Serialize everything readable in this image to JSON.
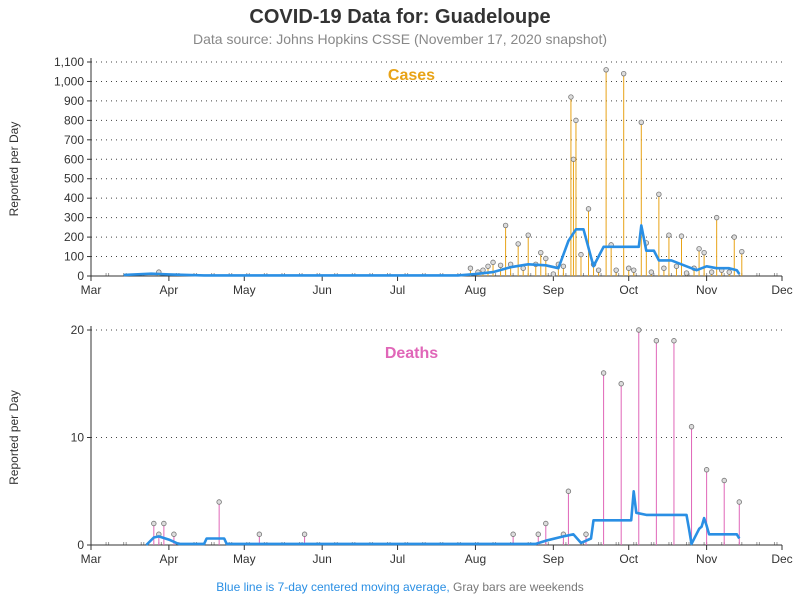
{
  "title": "COVID-19 Data for: Guadeloupe",
  "subtitle": "Data source: Johns Hopkins CSSE (November 17, 2020 snapshot)",
  "footer": {
    "blue_text": "Blue line is 7-day centered moving average,",
    "gray_text": " Gray bars are weekends"
  },
  "colors": {
    "cases": "#e8a317",
    "deaths": "#e066b8",
    "average_line": "#2a8fe4",
    "weekend_bars": "#999999"
  },
  "chart_data": [
    {
      "type": "line",
      "title": "Cases",
      "ylabel": "Reported per Day",
      "ylim": [
        0,
        1100
      ],
      "yticks": [
        0,
        100,
        200,
        300,
        400,
        500,
        600,
        700,
        800,
        900,
        1000,
        1100
      ],
      "ytick_labels": [
        "0",
        "100",
        "200",
        "300",
        "400",
        "500",
        "600",
        "700",
        "800",
        "900",
        "1,000",
        "1,100"
      ],
      "xlim": [
        "2020-03-01",
        "2020-12-01"
      ],
      "xticks": [
        "2020-03-01",
        "2020-04-01",
        "2020-05-01",
        "2020-06-01",
        "2020-07-01",
        "2020-08-01",
        "2020-09-01",
        "2020-10-01",
        "2020-11-01",
        "2020-12-01"
      ],
      "xtick_labels": [
        "Mar",
        "Apr",
        "May",
        "Jun",
        "Jul",
        "Aug",
        "Sep",
        "Oct",
        "Nov",
        "Dec"
      ],
      "grid": "horizontal dotted",
      "series": [
        {
          "kind": "daily_needles",
          "x": [
            "2020-03-28",
            "2020-07-30",
            "2020-08-02",
            "2020-08-04",
            "2020-08-06",
            "2020-08-08",
            "2020-08-11",
            "2020-08-13",
            "2020-08-15",
            "2020-08-18",
            "2020-08-20",
            "2020-08-22",
            "2020-08-25",
            "2020-08-27",
            "2020-08-29",
            "2020-09-01",
            "2020-09-03",
            "2020-09-05",
            "2020-09-08",
            "2020-09-09",
            "2020-09-10",
            "2020-09-12",
            "2020-09-15",
            "2020-09-17",
            "2020-09-19",
            "2020-09-22",
            "2020-09-24",
            "2020-09-26",
            "2020-09-29",
            "2020-10-01",
            "2020-10-03",
            "2020-10-06",
            "2020-10-08",
            "2020-10-10",
            "2020-10-13",
            "2020-10-15",
            "2020-10-17",
            "2020-10-20",
            "2020-10-22",
            "2020-10-24",
            "2020-10-27",
            "2020-10-29",
            "2020-10-31",
            "2020-11-03",
            "2020-11-05",
            "2020-11-07",
            "2020-11-10",
            "2020-11-12",
            "2020-11-15"
          ],
          "values": [
            20,
            40,
            20,
            30,
            50,
            70,
            55,
            260,
            60,
            165,
            40,
            210,
            60,
            120,
            90,
            10,
            60,
            50,
            920,
            600,
            800,
            110,
            345,
            60,
            30,
            1060,
            160,
            30,
            1040,
            40,
            30,
            790,
            170,
            20,
            420,
            40,
            210,
            50,
            205,
            15,
            40,
            140,
            120,
            20,
            300,
            30,
            20,
            200,
            125
          ]
        },
        {
          "kind": "moving_average",
          "x": [
            "2020-03-14",
            "2020-03-25",
            "2020-04-01",
            "2020-04-15",
            "2020-07-25",
            "2020-08-01",
            "2020-08-08",
            "2020-08-15",
            "2020-08-22",
            "2020-08-29",
            "2020-09-03",
            "2020-09-07",
            "2020-09-10",
            "2020-09-13",
            "2020-09-17",
            "2020-09-21",
            "2020-09-25",
            "2020-10-01",
            "2020-10-05",
            "2020-10-06",
            "2020-10-08",
            "2020-10-11",
            "2020-10-13",
            "2020-10-18",
            "2020-10-24",
            "2020-10-28",
            "2020-11-01",
            "2020-11-05",
            "2020-11-10",
            "2020-11-13",
            "2020-11-14"
          ],
          "values": [
            5,
            12,
            8,
            3,
            3,
            10,
            20,
            45,
            60,
            55,
            40,
            180,
            240,
            240,
            50,
            150,
            150,
            150,
            150,
            260,
            130,
            130,
            80,
            80,
            50,
            30,
            50,
            40,
            40,
            30,
            10
          ]
        }
      ]
    },
    {
      "type": "line",
      "title": "Deaths",
      "ylabel": "Reported per Day",
      "ylim": [
        0,
        20
      ],
      "yticks": [
        0,
        10,
        20
      ],
      "ytick_labels": [
        "0",
        "10",
        "20"
      ],
      "xlim": [
        "2020-03-01",
        "2020-12-01"
      ],
      "xticks": [
        "2020-03-01",
        "2020-04-01",
        "2020-05-01",
        "2020-06-01",
        "2020-07-01",
        "2020-08-01",
        "2020-09-01",
        "2020-10-01",
        "2020-11-01",
        "2020-12-01"
      ],
      "xtick_labels": [
        "Mar",
        "Apr",
        "May",
        "Jun",
        "Jul",
        "Aug",
        "Sep",
        "Oct",
        "Nov",
        "Dec"
      ],
      "grid": "horizontal dotted",
      "series": [
        {
          "kind": "daily_needles",
          "x": [
            "2020-03-26",
            "2020-03-28",
            "2020-03-30",
            "2020-04-03",
            "2020-04-21",
            "2020-05-07",
            "2020-05-25",
            "2020-08-16",
            "2020-08-26",
            "2020-08-29",
            "2020-09-05",
            "2020-09-07",
            "2020-09-14",
            "2020-09-21",
            "2020-09-28",
            "2020-10-05",
            "2020-10-12",
            "2020-10-19",
            "2020-10-26",
            "2020-11-01",
            "2020-11-08",
            "2020-11-14"
          ],
          "values": [
            2,
            1,
            2,
            1,
            4,
            1,
            1,
            1,
            1,
            2,
            1,
            5,
            1,
            16,
            15,
            20,
            19,
            19,
            11,
            7,
            6,
            4
          ]
        },
        {
          "kind": "moving_average",
          "x": [
            "2020-03-23",
            "2020-03-26",
            "2020-03-28",
            "2020-04-01",
            "2020-04-04",
            "2020-04-05",
            "2020-04-15",
            "2020-04-16",
            "2020-04-23",
            "2020-04-24",
            "2020-08-25",
            "2020-08-29",
            "2020-09-05",
            "2020-09-09",
            "2020-09-12",
            "2020-09-16",
            "2020-09-17",
            "2020-09-26",
            "2020-10-02",
            "2020-10-03",
            "2020-10-04",
            "2020-10-08",
            "2020-10-24",
            "2020-10-25",
            "2020-10-26",
            "2020-10-29",
            "2020-10-30",
            "2020-10-31",
            "2020-11-01",
            "2020-11-02",
            "2020-11-03",
            "2020-11-09",
            "2020-11-13",
            "2020-11-14"
          ],
          "values": [
            0,
            0.7,
            0.8,
            0.5,
            0.2,
            0.1,
            0.1,
            0.6,
            0.6,
            0.1,
            0.1,
            0.4,
            0.8,
            1.0,
            0.2,
            0.6,
            2.3,
            2.3,
            2.3,
            5.0,
            3.0,
            2.8,
            2.8,
            1.5,
            0.1,
            1.5,
            1.7,
            2.5,
            1.8,
            1.0,
            1.0,
            1.0,
            1.0,
            0.6
          ]
        }
      ]
    }
  ]
}
